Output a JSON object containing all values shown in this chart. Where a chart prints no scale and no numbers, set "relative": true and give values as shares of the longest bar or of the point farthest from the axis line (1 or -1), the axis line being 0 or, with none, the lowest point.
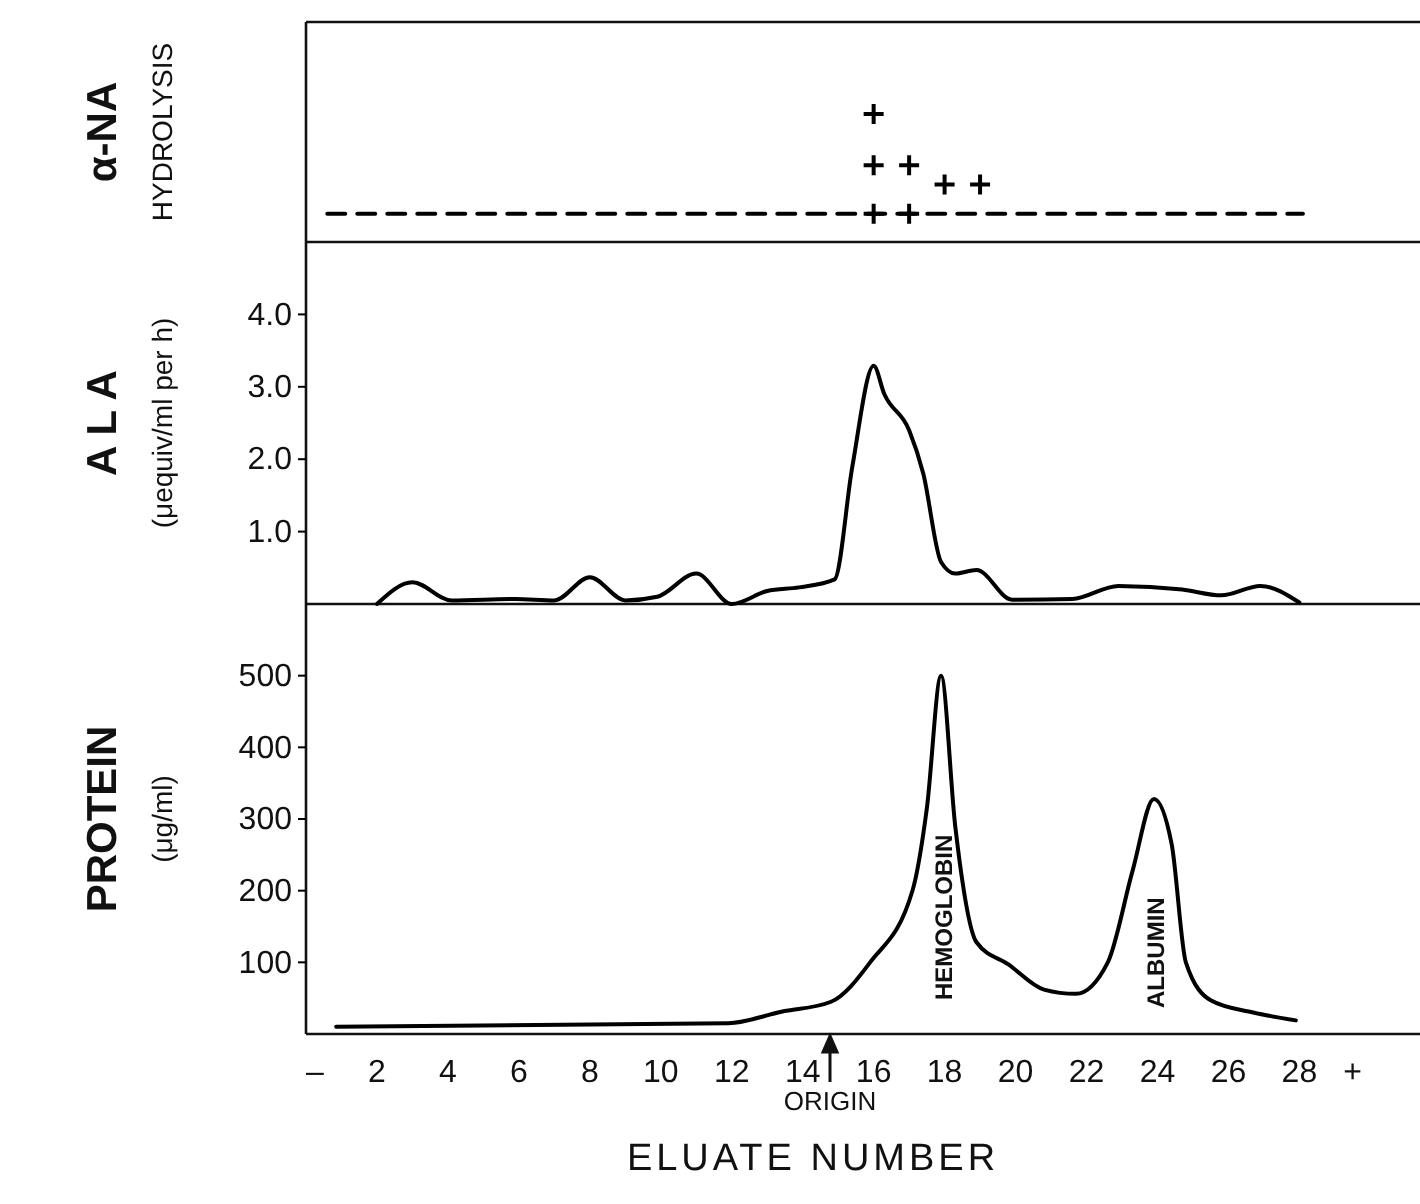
{
  "chart_data": [
    {
      "type": "scatter",
      "relative": true,
      "ylabel": "α-NA\nHYDROLYSIS",
      "xlim": [
        0,
        31.4
      ],
      "tick_labels": false,
      "series": [
        {
          "marker": "cross",
          "color": "#000000",
          "x": [
            16,
            16,
            16,
            17,
            17,
            18,
            19
          ],
          "values": [
            0.22,
            0.6,
            1,
            0.22,
            0.6,
            0.45,
            0.45
          ]
        },
        {
          "type": "line",
          "color": "#000000",
          "line_style": "dashed",
          "x": [
            0.6,
            28.1
          ],
          "values": [
            0.22,
            0.22
          ]
        }
      ]
    },
    {
      "type": "line",
      "ylabel": "A L A\n(μequiv/ml per h)",
      "xlim": [
        0,
        31.4
      ],
      "ylim": [
        0,
        5
      ],
      "yticks": [
        {
          "value": 1,
          "label": "1.0"
        },
        {
          "value": 2,
          "label": "2.0"
        },
        {
          "value": 3,
          "label": "3.0"
        },
        {
          "value": 4,
          "label": "4.0"
        }
      ],
      "tick_labels": "y",
      "series": [
        {
          "color": "#000000",
          "x": [
            2,
            3,
            4.1,
            5.9,
            7,
            8,
            9,
            9.9,
            11,
            12,
            13,
            13.9,
            14.9,
            15.4,
            16,
            16.3,
            17,
            17.4,
            17.9,
            18.3,
            18.9,
            19.9,
            21.6,
            22.9,
            24.7,
            25.8,
            26.9,
            28
          ],
          "values": [
            0,
            0.3,
            0.05,
            0.07,
            0.05,
            0.37,
            0.05,
            0.1,
            0.42,
            0,
            0.18,
            0.23,
            0.34,
            1.9,
            3.29,
            2.9,
            2.4,
            1.8,
            0.58,
            0.42,
            0.47,
            0.06,
            0.07,
            0.25,
            0.2,
            0.12,
            0.25,
            0.02
          ]
        }
      ]
    },
    {
      "type": "line",
      "ylabel": "PROTEIN\n(μg/ml)",
      "xlabel": "ELUATE NUMBER",
      "xlim": [
        0,
        31.4
      ],
      "ylim": [
        0,
        600
      ],
      "yticks": [
        100,
        200,
        300,
        400,
        500
      ],
      "xticks": [
        {
          "value": 0.25,
          "label": "–"
        },
        2,
        4,
        6,
        8,
        10,
        12,
        14,
        16,
        18,
        20,
        22,
        24,
        26,
        28,
        {
          "value": 29.5,
          "label": "+"
        }
      ],
      "annotations": [
        "HEMOGLOBIN",
        "ALBUMIN",
        "ORIGIN"
      ],
      "series": [
        {
          "color": "#000000",
          "x": [
            0.85,
            11.9,
            13.4,
            14.8,
            15.9,
            17.1,
            17.5,
            17.9,
            18.3,
            18.9,
            19.8,
            20.8,
            21.7,
            22.6,
            23.3,
            23.9,
            24.4,
            24.8,
            25.5,
            26.7,
            27.9
          ],
          "values": [
            10,
            15,
            31,
            45,
            100,
            201,
            315,
            500,
            290,
            128,
            97,
            62,
            56,
            100,
            228,
            328,
            265,
            100,
            47,
            30,
            19
          ]
        }
      ]
    }
  ]
}
